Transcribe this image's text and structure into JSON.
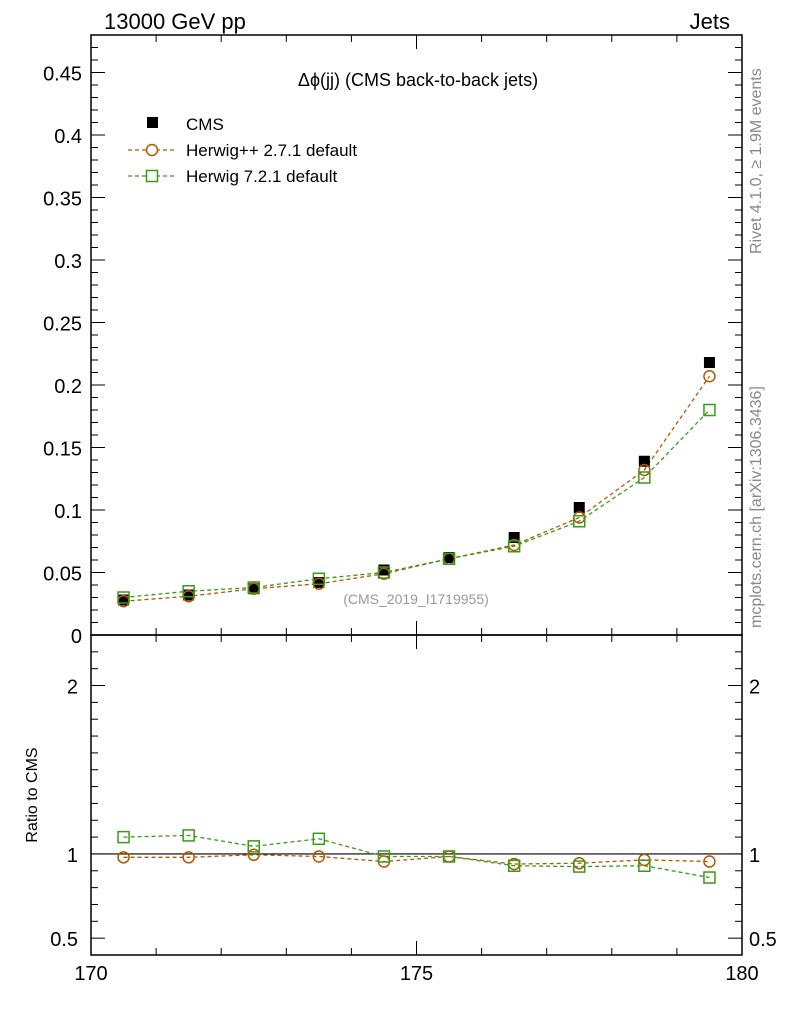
{
  "header": {
    "left": "13000 GeV pp",
    "right": "Jets"
  },
  "side_labels": {
    "rivet": "Rivet 4.1.0, ≥ 1.9M events",
    "mcplots": "mcplots.cern.ch [arXiv:1306.3436]"
  },
  "plot_title": "Δϕ(jj) (CMS back-to-back jets)",
  "analysis_id": "(CMS_2019_I1719955)",
  "ratio_ylabel": "Ratio to CMS",
  "colors": {
    "herwigpp": "#b35900",
    "herwig7": "#3a9a1a",
    "data": "#000000"
  },
  "chart_data": {
    "type": "scatter",
    "x_range": [
      170,
      180
    ],
    "x_ticks": [
      "170",
      "175",
      "180"
    ],
    "main": {
      "ylim": [
        0,
        0.48
      ],
      "y_ticks": [
        "0",
        "0.05",
        "0.1",
        "0.15",
        "0.2",
        "0.25",
        "0.3",
        "0.35",
        "0.4",
        "0.45"
      ],
      "y_tick_values": [
        0,
        0.05,
        0.1,
        0.15,
        0.2,
        0.25,
        0.3,
        0.35,
        0.4,
        0.45
      ]
    },
    "ratio": {
      "ylim": [
        0.4,
        2.3
      ],
      "y_ticks": [
        "0.5",
        "1",
        "2"
      ],
      "y_tick_values": [
        0.5,
        1,
        2
      ]
    },
    "x": [
      170.5,
      171.5,
      172.5,
      173.5,
      174.5,
      175.5,
      176.5,
      177.5,
      178.5,
      179.5
    ],
    "legend": [
      {
        "name": "CMS",
        "marker": "filled-square",
        "color": "#000000"
      },
      {
        "name": "Herwig++ 2.7.1 default",
        "marker": "open-circle",
        "color": "#b35900"
      },
      {
        "name": "Herwig 7.2.1 default",
        "marker": "open-square",
        "color": "#3a9a1a"
      }
    ],
    "series": [
      {
        "name": "CMS",
        "values": [
          0.028,
          0.032,
          0.037,
          0.042,
          0.052,
          0.062,
          0.078,
          0.102,
          0.139,
          0.218
        ]
      },
      {
        "name": "Herwig++ 2.7.1 default",
        "values": [
          0.027,
          0.031,
          0.037,
          0.041,
          0.049,
          0.061,
          0.072,
          0.094,
          0.132,
          0.207
        ],
        "ratio": [
          0.98,
          0.98,
          0.995,
          0.985,
          0.955,
          0.985,
          0.94,
          0.945,
          0.965,
          0.955
        ]
      },
      {
        "name": "Herwig 7.2.1 default",
        "values": [
          0.03,
          0.035,
          0.038,
          0.045,
          0.05,
          0.061,
          0.071,
          0.091,
          0.126,
          0.18
        ],
        "ratio": [
          1.1,
          1.11,
          1.045,
          1.09,
          0.985,
          0.985,
          0.93,
          0.925,
          0.93,
          0.86
        ]
      }
    ]
  }
}
